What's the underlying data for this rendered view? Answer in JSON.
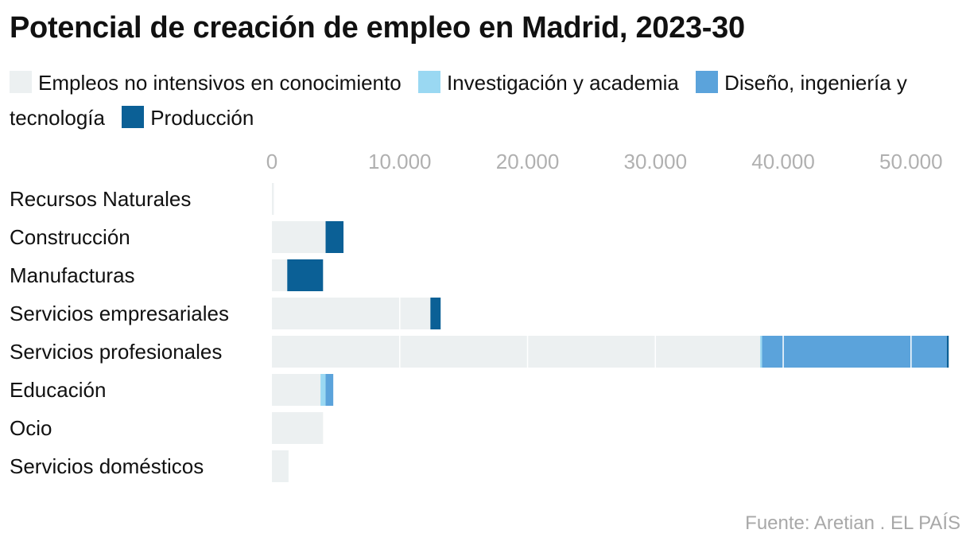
{
  "title": "Potencial de creación de empleo en Madrid, 2023-30",
  "source": "Fuente: Aretian . EL PAÍS",
  "chart_data": {
    "type": "bar",
    "orientation": "horizontal",
    "stacked": true,
    "title": "Potencial de creación de empleo en Madrid, 2023-30",
    "xlim": [
      0,
      52500
    ],
    "x_ticks": [
      0,
      10000,
      20000,
      30000,
      40000,
      50000
    ],
    "x_tick_labels": [
      "0",
      "10.000",
      "20.000",
      "30.000",
      "40.000",
      "50.000"
    ],
    "categories": [
      "Recursos Naturales",
      "Construcción",
      "Manufacturas",
      "Servicios empresariales",
      "Servicios profesionales",
      "Educación",
      "Ocio",
      "Servicios domésticos"
    ],
    "series": [
      {
        "name": "Empleos no intensivos en conocimiento",
        "color": "#ecf0f1",
        "values": [
          150,
          4200,
          1200,
          12400,
          38200,
          3800,
          4000,
          1300
        ]
      },
      {
        "name": "Investigación y academia",
        "color": "#9ad8f2",
        "values": [
          0,
          0,
          0,
          0,
          150,
          400,
          0,
          0
        ]
      },
      {
        "name": "Diseño, ingeniería y tecnología",
        "color": "#5ba3db",
        "values": [
          0,
          0,
          0,
          0,
          14450,
          600,
          0,
          0
        ]
      },
      {
        "name": "Producción",
        "color": "#0b6096",
        "values": [
          0,
          1400,
          2800,
          800,
          150,
          0,
          0,
          0
        ]
      }
    ],
    "legend_position": "top",
    "grid": true
  }
}
